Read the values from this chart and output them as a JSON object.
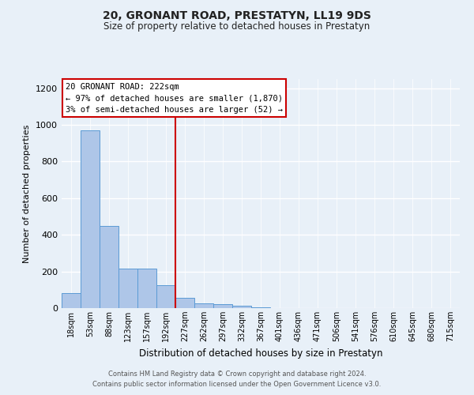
{
  "title_line1": "20, GRONANT ROAD, PRESTATYN, LL19 9DS",
  "title_line2": "Size of property relative to detached houses in Prestatyn",
  "xlabel": "Distribution of detached houses by size in Prestatyn",
  "ylabel": "Number of detached properties",
  "annotation_line1": "20 GRONANT ROAD: 222sqm",
  "annotation_line2": "← 97% of detached houses are smaller (1,870)",
  "annotation_line3": "3% of semi-detached houses are larger (52) →",
  "footer_line1": "Contains HM Land Registry data © Crown copyright and database right 2024.",
  "footer_line2": "Contains public sector information licensed under the Open Government Licence v3.0.",
  "bar_categories": [
    "18sqm",
    "53sqm",
    "88sqm",
    "123sqm",
    "157sqm",
    "192sqm",
    "227sqm",
    "262sqm",
    "297sqm",
    "332sqm",
    "367sqm",
    "401sqm",
    "436sqm",
    "471sqm",
    "506sqm",
    "541sqm",
    "576sqm",
    "610sqm",
    "645sqm",
    "680sqm",
    "715sqm"
  ],
  "bar_values": [
    80,
    970,
    450,
    215,
    215,
    125,
    55,
    25,
    20,
    15,
    5,
    0,
    0,
    0,
    0,
    0,
    0,
    0,
    0,
    0,
    0
  ],
  "bar_color": "#aec6e8",
  "bar_edgecolor": "#5b9bd5",
  "property_line_index": 6,
  "property_line_color": "#cc0000",
  "ylim": [
    0,
    1250
  ],
  "yticks": [
    0,
    200,
    400,
    600,
    800,
    1000,
    1200
  ],
  "background_color": "#e8f0f8",
  "plot_background": "#e8f0f8",
  "grid_color": "#ffffff",
  "title_fontsize": 10,
  "subtitle_fontsize": 8.5,
  "ylabel_fontsize": 8,
  "xlabel_fontsize": 8.5,
  "tick_fontsize": 7,
  "annotation_fontsize": 7.5,
  "footer_fontsize": 6
}
